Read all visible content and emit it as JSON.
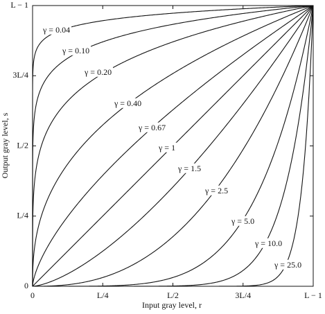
{
  "chart_data": {
    "type": "power_curves",
    "x_label": "Input gray level, r",
    "y_label": "Output gray level, s",
    "xlim": [
      0,
      1
    ],
    "ylim": [
      0,
      1
    ],
    "xticks": [
      {
        "value": 0,
        "label": "0"
      },
      {
        "value": 0.25,
        "label": "L/4"
      },
      {
        "value": 0.5,
        "label": "L/2"
      },
      {
        "value": 0.75,
        "label": "3L/4"
      },
      {
        "value": 1,
        "label": "L − 1"
      }
    ],
    "yticks": [
      {
        "value": 0,
        "label": "0"
      },
      {
        "value": 0.25,
        "label": "L/4"
      },
      {
        "value": 0.5,
        "label": "L/2"
      },
      {
        "value": 0.75,
        "label": "3L/4"
      },
      {
        "value": 1,
        "label": "L − 1"
      }
    ],
    "color": "#111111",
    "series": [
      {
        "name": "γ = 0.04",
        "gamma": 0.04
      },
      {
        "name": "γ = 0.10",
        "gamma": 0.1
      },
      {
        "name": "γ = 0.20",
        "gamma": 0.2
      },
      {
        "name": "γ = 0.40",
        "gamma": 0.4
      },
      {
        "name": "γ = 0.67",
        "gamma": 0.67
      },
      {
        "name": "γ = 1",
        "gamma": 1
      },
      {
        "name": "γ = 1.5",
        "gamma": 1.5
      },
      {
        "name": "γ = 2.5",
        "gamma": 2.5
      },
      {
        "name": "γ = 5.0",
        "gamma": 5
      },
      {
        "name": "γ = 10.0",
        "gamma": 10
      },
      {
        "name": "γ = 25.0",
        "gamma": 25
      }
    ]
  }
}
